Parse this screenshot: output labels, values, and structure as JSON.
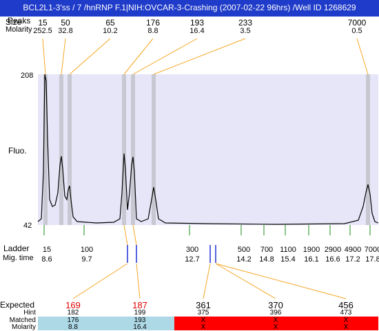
{
  "title": "BCL2L1-3'ss / 7 /hnRNP F.1|NIH:OVCAR-3-Crashing (2007-02-22 96hrs) /Well ID 1268629",
  "peaks_header": {
    "row1_label": "Peaks",
    "row1_label_overlap": "Size",
    "row2_label": "Molarity"
  },
  "peaks": [
    {
      "size": "15",
      "molarity": "252.5"
    },
    {
      "size": "50",
      "molarity": "32.8"
    },
    {
      "size": "65",
      "molarity": "10.2"
    },
    {
      "size": "176",
      "molarity": "8.8"
    },
    {
      "size": "193",
      "molarity": "16.4"
    },
    {
      "size": "233",
      "molarity": "3.5"
    },
    {
      "size": "7000",
      "molarity": "0.5"
    }
  ],
  "plot": {
    "ymax_label": "208",
    "ymin_label": "42",
    "ylabel": "Fluo.",
    "bg_color": "#e6e6f8",
    "band_color": "#c8c8d2"
  },
  "ladder": {
    "label": "Ladder",
    "mig_label": "Mig. time",
    "items": [
      {
        "size": "15",
        "time": "8.6"
      },
      {
        "size": "100",
        "time": "9.7"
      },
      {
        "size": "300",
        "time": "12.7"
      },
      {
        "size": "500",
        "time": "14.2"
      },
      {
        "size": "700",
        "time": "14.8"
      },
      {
        "size": "1100",
        "time": "15.4"
      },
      {
        "size": "1900",
        "time": "16.1"
      },
      {
        "size": "2900",
        "time": "16.6"
      },
      {
        "size": "4900",
        "time": "17.2"
      },
      {
        "size": "7000",
        "time": "17.8"
      }
    ]
  },
  "expected": {
    "label": "Expected",
    "hint_label": "Hint",
    "matched_label": "Matched",
    "molarity_label": "Molarity",
    "matched_color": "#add8e6",
    "unmatched_color": "#ff0000",
    "items": [
      {
        "expected": "169",
        "hint": "182",
        "matched": "176",
        "molarity": "8.8",
        "red": true
      },
      {
        "expected": "187",
        "hint": "199",
        "matched": "193",
        "molarity": "16.4",
        "red": true
      },
      {
        "expected": "361",
        "hint": "375",
        "matched": "X",
        "molarity": "X",
        "red": false
      },
      {
        "expected": "370",
        "hint": "396",
        "matched": "X",
        "molarity": "X",
        "red": false
      },
      {
        "expected": "456",
        "hint": "473",
        "matched": "X",
        "molarity": "X",
        "red": false
      }
    ]
  }
}
